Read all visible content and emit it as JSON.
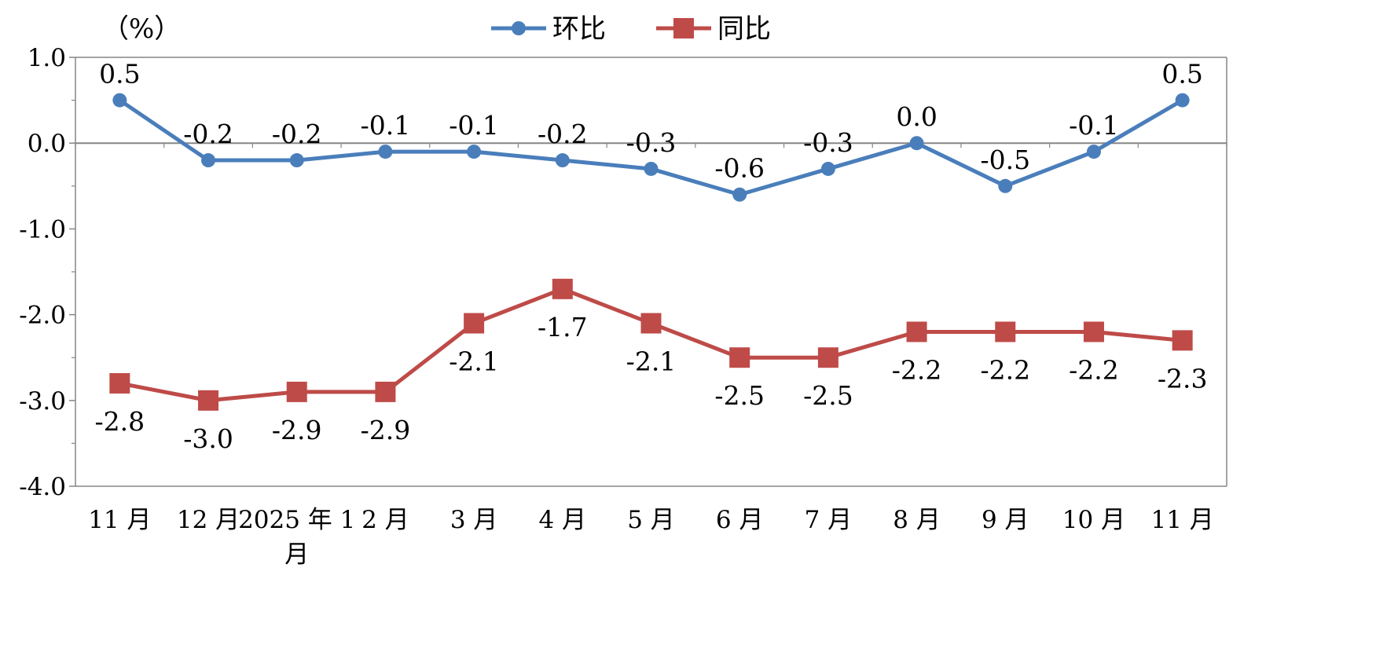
{
  "chart_data": {
    "type": "line",
    "unit_label": "（%）",
    "categories": [
      "11 月",
      "12 月",
      "2025 年 1 月",
      "2 月",
      "3 月",
      "4 月",
      "5 月",
      "6 月",
      "7 月",
      "8 月",
      "9 月",
      "10 月",
      "11 月"
    ],
    "category_lines": [
      [
        "11 月"
      ],
      [
        "12 月"
      ],
      [
        "2025 年 1",
        "月"
      ],
      [
        "2 月"
      ],
      [
        "3 月"
      ],
      [
        "4 月"
      ],
      [
        "5 月"
      ],
      [
        "6 月"
      ],
      [
        "7 月"
      ],
      [
        "8 月"
      ],
      [
        "9 月"
      ],
      [
        "10 月"
      ],
      [
        "11 月"
      ]
    ],
    "ylim": [
      -4.0,
      1.0
    ],
    "yticks": [
      1.0,
      0.0,
      -1.0,
      -2.0,
      -3.0,
      -4.0
    ],
    "ytick_labels": [
      "1.0",
      "0.0",
      "-1.0",
      "-2.0",
      "-3.0",
      "-4.0"
    ],
    "grid": false,
    "legend_position": "top-center",
    "series": [
      {
        "name": "环比",
        "color": "#4a7ebb",
        "marker": "circle",
        "values": [
          0.5,
          -0.2,
          -0.2,
          -0.1,
          -0.1,
          -0.2,
          -0.3,
          -0.6,
          -0.3,
          0.0,
          -0.5,
          -0.1,
          0.5
        ],
        "labels": [
          "0.5",
          "-0.2",
          "-0.2",
          "-0.1",
          "-0.1",
          "-0.2",
          "-0.3",
          "-0.6",
          "-0.3",
          "0.0",
          "-0.5",
          "-0.1",
          "0.5"
        ]
      },
      {
        "name": "同比",
        "color": "#be4b48",
        "marker": "square",
        "values": [
          -2.8,
          -3.0,
          -2.9,
          -2.9,
          -2.1,
          -1.7,
          -2.1,
          -2.5,
          -2.5,
          -2.2,
          -2.2,
          -2.2,
          -2.3
        ],
        "labels": [
          "-2.8",
          "-3.0",
          "-2.9",
          "-2.9",
          "-2.1",
          "-1.7",
          "-2.1",
          "-2.5",
          "-2.5",
          "-2.2",
          "-2.2",
          "-2.2",
          "-2.3"
        ]
      }
    ]
  }
}
